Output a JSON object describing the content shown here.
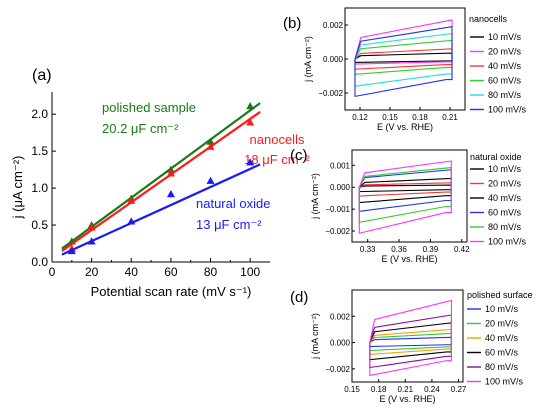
{
  "chart_data": [
    {
      "id": "a",
      "type": "scatter",
      "panel_label": "(a)",
      "xlabel": "Potential scan rate (mV s⁻¹)",
      "ylabel": "j (μA cm⁻²)",
      "xlim": [
        0,
        110
      ],
      "ylim": [
        0,
        2.3
      ],
      "xticks": [
        0,
        20,
        40,
        60,
        80,
        100
      ],
      "yticks": [
        0.0,
        0.5,
        1.0,
        1.5,
        2.0
      ],
      "ytick_labels": [
        "0.0",
        "0.5",
        "1.0",
        "1.5",
        "2.0"
      ],
      "series": [
        {
          "name": "polished sample",
          "annotation": "20.2 μF cm⁻²",
          "color": "#1a7a1a",
          "marker": "triangle",
          "x": [
            10,
            20,
            40,
            60,
            80,
            100
          ],
          "y": [
            0.28,
            0.5,
            0.86,
            1.25,
            1.63,
            2.11
          ],
          "fit": [
            [
              5,
              0.18
            ],
            [
              105,
              2.15
            ]
          ]
        },
        {
          "name": "nanocells",
          "annotation": "18 μF cm⁻²",
          "color": "#ff1a1a",
          "marker": "triangle",
          "x": [
            10,
            20,
            40,
            60,
            80,
            100
          ],
          "y": [
            0.18,
            0.47,
            0.83,
            1.2,
            1.56,
            1.89
          ],
          "fit": [
            [
              5,
              0.15
            ],
            [
              105,
              2.03
            ]
          ]
        },
        {
          "name": "natural oxide",
          "annotation": "13 μF cm⁻²",
          "color": "#1a1aff",
          "marker": "triangle",
          "x": [
            10,
            20,
            40,
            60,
            80,
            100
          ],
          "y": [
            0.15,
            0.28,
            0.55,
            0.92,
            1.1,
            1.35
          ],
          "fit": [
            [
              5,
              0.1
            ],
            [
              105,
              1.32
            ]
          ]
        }
      ]
    },
    {
      "id": "b",
      "type": "line",
      "panel_label": "(b)",
      "title": "nanocells",
      "xlabel": "E (V  vs. RHE)",
      "ylabel": "j (mA cm⁻²)",
      "xlim": [
        0.105,
        0.225
      ],
      "ylim": [
        -0.003,
        0.003
      ],
      "xticks": [
        0.12,
        0.15,
        0.18,
        0.21
      ],
      "xtick_labels": [
        "0.12",
        "0.15",
        "0.18",
        "0.21"
      ],
      "yticks": [
        -0.002,
        0.0,
        0.002
      ],
      "ytick_labels": [
        "-0.002",
        "0.000",
        "0.002"
      ],
      "e_range": [
        0.115,
        0.212
      ],
      "series": [
        {
          "name": "10 mV/s",
          "color": "#000000",
          "upper": 0.00035,
          "lower": -0.0002
        },
        {
          "name": "20 mV/s",
          "color": "#ff33ff",
          "upper": 0.0023,
          "lower": -0.0003
        },
        {
          "name": "40 mV/s",
          "color": "#ff3333",
          "upper": 0.0006,
          "lower": -0.0006
        },
        {
          "name": "60 mV/s",
          "color": "#33cc33",
          "upper": 0.0011,
          "lower": -0.0009
        },
        {
          "name": "80 mV/s",
          "color": "#22dddd",
          "upper": 0.0015,
          "lower": -0.0016
        },
        {
          "name": "100 mV/s",
          "color": "#2233ee",
          "upper": 0.0019,
          "lower": -0.0022
        }
      ]
    },
    {
      "id": "c",
      "type": "line",
      "panel_label": "(c)",
      "title": "natural oxide",
      "xlabel": "E (V  vs. RHE)",
      "ylabel": "j (mA cm⁻²)",
      "xlim": [
        0.315,
        0.425
      ],
      "ylim": [
        -0.0025,
        0.0017
      ],
      "xticks": [
        0.33,
        0.36,
        0.39,
        0.42
      ],
      "xtick_labels": [
        "0.33",
        "0.36",
        "0.39",
        "0.42"
      ],
      "yticks": [
        -0.002,
        -0.001,
        0.0,
        0.001
      ],
      "ytick_labels": [
        "-0.002",
        "-0.001",
        "0.000",
        "0.001"
      ],
      "e_range": [
        0.322,
        0.41
      ],
      "series": [
        {
          "name": "10 mV/s",
          "color": "#000000",
          "upper": 0.0001,
          "lower": -0.0002
        },
        {
          "name": "20 mV/s",
          "color": "#ff3333",
          "upper": 0.0002,
          "lower": -0.0004
        },
        {
          "name": "40 mV/s",
          "color": "#000000",
          "upper": 0.0004,
          "lower": -0.0007
        },
        {
          "name": "60 mV/s",
          "color": "#2233ee",
          "upper": 0.0008,
          "lower": -0.0011
        },
        {
          "name": "80 mV/s",
          "color": "#33cc33",
          "upper": 0.0009,
          "lower": -0.0016
        },
        {
          "name": "100 mV/s",
          "color": "#ff33ff",
          "upper": 0.0012,
          "lower": -0.0021
        }
      ]
    },
    {
      "id": "d",
      "type": "line",
      "panel_label": "(d)",
      "title": "polished surface",
      "xlabel": "E (V  vs. RHE)",
      "ylabel": "j (mA cm⁻²)",
      "xlim": [
        0.15,
        0.275
      ],
      "ylim": [
        -0.003,
        0.004
      ],
      "xticks": [
        0.15,
        0.18,
        0.21,
        0.24,
        0.27
      ],
      "xtick_labels": [
        "0.15",
        "0.18",
        "0.21",
        "0.24",
        "0.27"
      ],
      "yticks": [
        -0.002,
        0.0,
        0.002
      ],
      "ytick_labels": [
        "-0.002",
        "0.000",
        "0.002"
      ],
      "e_range": [
        0.17,
        0.262
      ],
      "series": [
        {
          "name": "10 mV/s",
          "color": "#2233ee",
          "upper": 0.0004,
          "lower": -0.0003
        },
        {
          "name": "20 mV/s",
          "color": "#33cc33",
          "upper": 0.0007,
          "lower": -0.0006
        },
        {
          "name": "40 mV/s",
          "color": "#ff9900",
          "upper": 0.001,
          "lower": -0.0009
        },
        {
          "name": "60 mV/s",
          "color": "#000000",
          "upper": 0.0015,
          "lower": -0.0013
        },
        {
          "name": "80 mV/s",
          "color": "#8a0aa0",
          "upper": 0.0021,
          "lower": -0.0019
        },
        {
          "name": "100 mV/s",
          "color": "#ff33ff",
          "upper": 0.0032,
          "lower": -0.0025
        }
      ]
    }
  ]
}
